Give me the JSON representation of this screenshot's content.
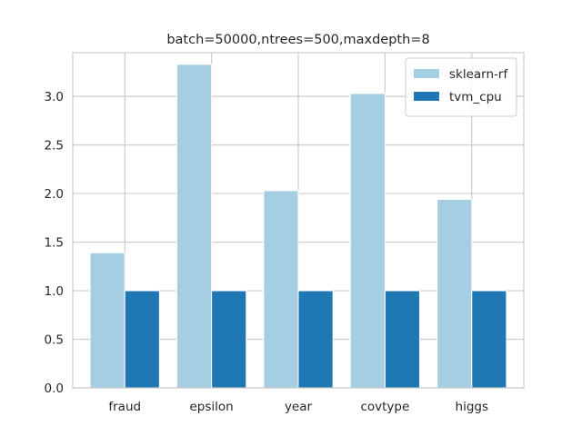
{
  "chart_data": {
    "type": "bar",
    "title": "batch=50000,ntrees=500,maxdepth=8",
    "xlabel": "",
    "ylabel": "",
    "categories": [
      "fraud",
      "epsilon",
      "year",
      "covtype",
      "higgs"
    ],
    "series": [
      {
        "name": "sklearn-rf",
        "color": "#a6cee3",
        "values": [
          1.39,
          3.33,
          2.03,
          3.03,
          1.94
        ]
      },
      {
        "name": "tvm_cpu",
        "color": "#1f78b4",
        "values": [
          1.0,
          1.0,
          1.0,
          1.0,
          1.0
        ]
      }
    ],
    "ylim": [
      0,
      3.45
    ],
    "yticks": [
      0.0,
      0.5,
      1.0,
      1.5,
      2.0,
      2.5,
      3.0
    ],
    "ytick_labels": [
      "0.0",
      "0.5",
      "1.0",
      "1.5",
      "2.0",
      "2.5",
      "3.0"
    ],
    "grid": true,
    "legend_position": "top-right"
  }
}
